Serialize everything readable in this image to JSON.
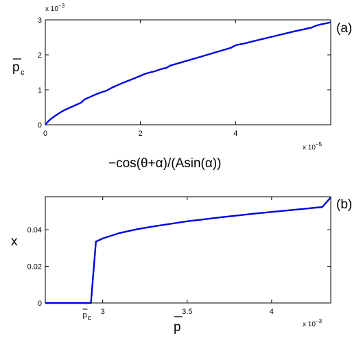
{
  "chart_data": [
    {
      "type": "line",
      "panel_label": "(a)",
      "xlabel": "−cos(θ+α)/(Asin(α))",
      "ylabel": "p",
      "ylabel_sub": "c",
      "x_exponent": "x 10",
      "x_exponent_power": "−5",
      "y_exponent": "x 10",
      "y_exponent_power": "−3",
      "xlim": [
        0,
        6e-05
      ],
      "ylim": [
        0,
        0.003
      ],
      "x_ticks": [
        0,
        2e-05,
        4e-05
      ],
      "x_tick_labels": [
        "0",
        "2",
        "4"
      ],
      "y_ticks": [
        0,
        0.001,
        0.002,
        0.003
      ],
      "y_tick_labels": [
        "0",
        "1",
        "2",
        "3"
      ],
      "grid": false,
      "series": [
        {
          "color": "#0000e0",
          "x": [
            0,
            5e-07,
            1.2e-06,
            2e-06,
            3e-06,
            4e-06,
            5e-06,
            6e-06,
            7e-06,
            7.6e-06,
            8.3e-06,
            9.5e-06,
            1.08e-05,
            1.2e-05,
            1.28e-05,
            1.4e-05,
            1.6e-05,
            1.8e-05,
            2e-05,
            2.08e-05,
            2.18e-05,
            2.3e-05,
            2.45e-05,
            2.55e-05,
            2.62e-05,
            2.8e-05,
            3.2e-05,
            3.6e-05,
            3.9e-05,
            3.95e-05,
            4.02e-05,
            4.2e-05,
            4.4e-05,
            4.8e-05,
            5.2e-05,
            5.6e-05,
            5.68e-05,
            5.76e-05,
            6e-05
          ],
          "y": [
            0,
            8e-05,
            0.00017,
            0.00025,
            0.00034,
            0.00042,
            0.00048,
            0.00054,
            0.0006,
            0.00064,
            0.00073,
            0.0008,
            0.00088,
            0.00094,
            0.00097,
            0.00106,
            0.00118,
            0.00129,
            0.0014,
            0.00145,
            0.00149,
            0.00153,
            0.0016,
            0.00163,
            0.00169,
            0.00176,
            0.00192,
            0.00208,
            0.0022,
            0.00224,
            0.00228,
            0.00233,
            0.0024,
            0.00253,
            0.00266,
            0.00278,
            0.00283,
            0.00286,
            0.00293
          ]
        }
      ]
    },
    {
      "type": "line",
      "panel_label": "(b)",
      "xlabel": "p",
      "ylabel": "x",
      "x_exponent": "x 10",
      "x_exponent_power": "−3",
      "xlim": [
        0.00266,
        0.00435
      ],
      "ylim": [
        0,
        0.058
      ],
      "x_ticks": [
        0.003,
        0.0035,
        0.004
      ],
      "x_tick_labels": [
        "3",
        "3.5",
        "4"
      ],
      "y_ticks": [
        0,
        0.02,
        0.04
      ],
      "y_tick_labels": [
        "0",
        "0.02",
        "0.04"
      ],
      "annotation": {
        "text": "p",
        "sub": "c",
        "x": 0.00293
      },
      "grid": false,
      "series": [
        {
          "color": "#0000e0",
          "x": [
            0.00266,
            0.00285,
            0.00293,
            0.00296,
            0.003,
            0.0031,
            0.0032,
            0.0033,
            0.0034,
            0.0035,
            0.0036,
            0.0037,
            0.0038,
            0.0039,
            0.004,
            0.0041,
            0.0042,
            0.0043,
            0.00435
          ],
          "y": [
            0,
            0,
            0,
            0.0335,
            0.0352,
            0.0382,
            0.0402,
            0.0418,
            0.0432,
            0.0446,
            0.0457,
            0.0468,
            0.0478,
            0.0488,
            0.0497,
            0.0506,
            0.0515,
            0.0524,
            0.0576
          ]
        }
      ]
    }
  ]
}
